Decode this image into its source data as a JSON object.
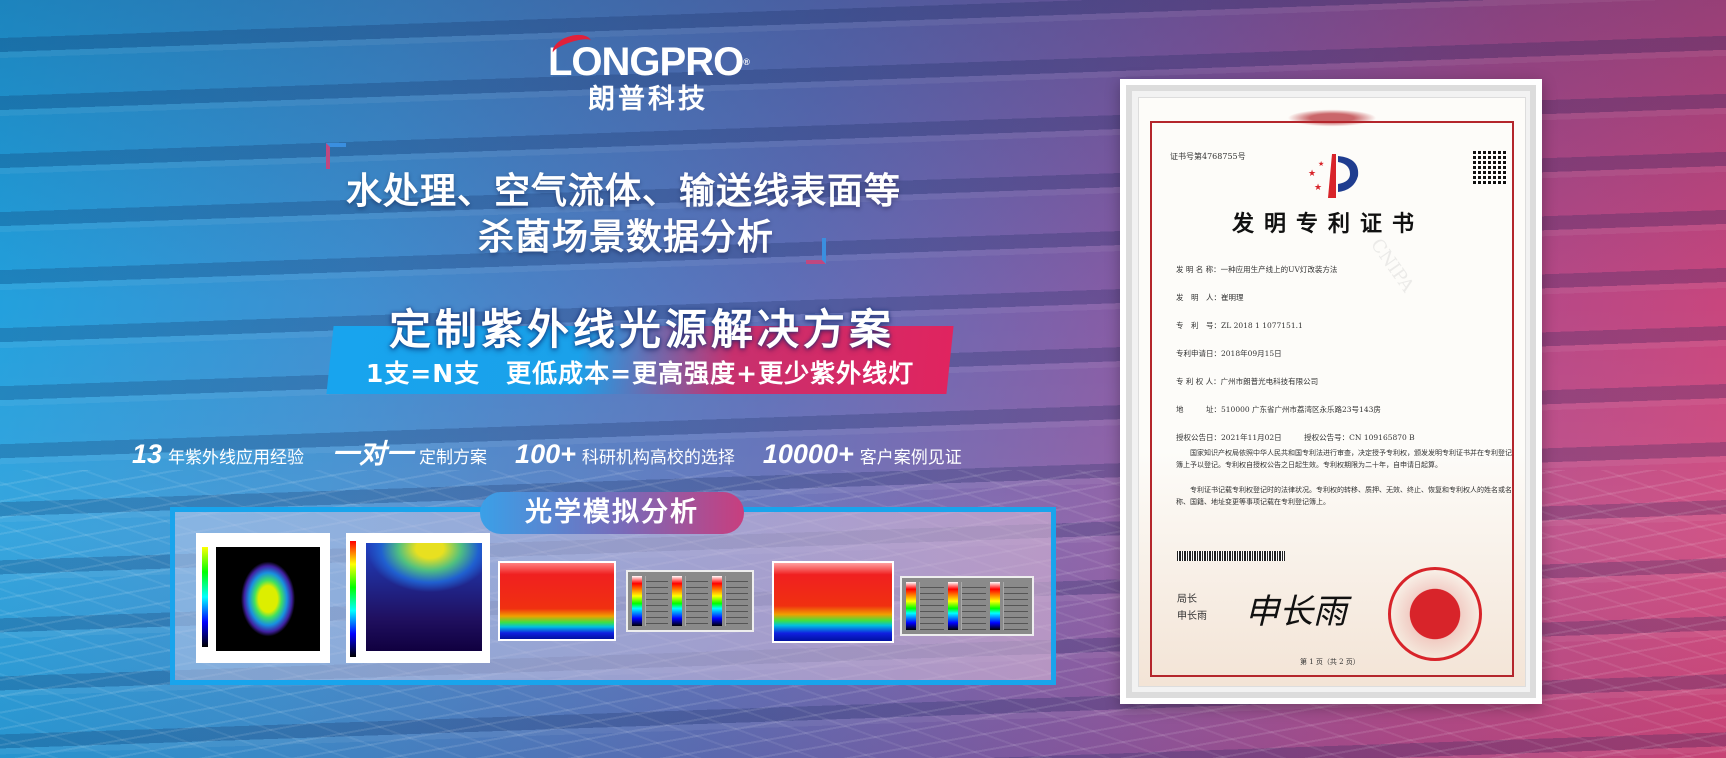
{
  "brand": {
    "name": "LONGPRO",
    "registered": "®",
    "name_cn": "朗普科技"
  },
  "headline": {
    "line1": "水处理、空气流体、输送线表面等",
    "line2": "杀菌场景数据分析"
  },
  "banner": {
    "title": "定制紫外线光源解决方案",
    "subtitle": "1支=N支　更低成本=更高强度+更少紫外线灯"
  },
  "stats": [
    {
      "value": "13",
      "label": "年紫外线应用经验"
    },
    {
      "value": "一对一",
      "label": "定制方案"
    },
    {
      "value": "100+",
      "label": "科研机构高校的选择"
    },
    {
      "value": "10000+",
      "label": "客户案例见证"
    }
  ],
  "panel": {
    "title": "光学模拟分析"
  },
  "certificate": {
    "number": "证书号第4768755号",
    "title": "发明专利证书",
    "fields": [
      "发 明 名 称：一种应用生产线上的UV灯改装方法",
      "发　明　人：崔明理",
      "专　利　号：ZL 2018 1 1077151.1",
      "专利申请日：2018年09月15日",
      "专 利 权 人：广州市朗普光电科技有限公司",
      "地　　　址：510000 广东省广州市荔湾区永乐路23号143房",
      "授权公告日：2021年11月02日　　　授权公告号：CN 109165870 B"
    ],
    "paragraphs": [
      "国家知识产权局依照中华人民共和国专利法进行审查，决定授予专利权，颁发发明专利证书并在专利登记簿上予以登记。专利权自授权公告之日起生效。专利权期限为二十年，自申请日起算。",
      "专利证书记载专利权登记时的法律状况。专利权的转移、质押、无效、终止、恢复和专利权人的姓名或名称、国籍、地址变更等事项记载在专利登记簿上。"
    ],
    "signer_title": "局长",
    "signer_name": "申长雨",
    "signature": "申长雨",
    "page": "第 1 页（共 2 页）",
    "watermark": "CNIPA"
  },
  "colors": {
    "blue": "#19a4ec",
    "pink": "#e0245f",
    "seal_red": "#d8242a"
  }
}
